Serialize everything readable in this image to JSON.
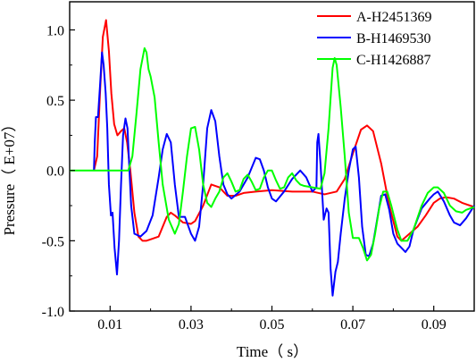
{
  "chart_data": {
    "type": "line",
    "title": "",
    "xlabel": "Time（ s）",
    "ylabel": "Pressure（ E+07）",
    "xlim": [
      0.0,
      0.1
    ],
    "ylim": [
      -1.0,
      1.2
    ],
    "xticks": [
      0.01,
      0.03,
      0.05,
      0.07,
      0.09
    ],
    "xtick_labels": [
      "0.01",
      "0.03",
      "0.05",
      "0.07",
      "0.09"
    ],
    "yticks": [
      -1.0,
      -0.5,
      0.0,
      0.5,
      1.0
    ],
    "ytick_labels": [
      "-1.0",
      "-0.5",
      "0.0",
      "0.5",
      "1.0"
    ],
    "grid": false,
    "legend_position": "top-right",
    "series": [
      {
        "name": "A-H2451369",
        "color": "#ff0000",
        "points": [
          [
            0.006,
            0
          ],
          [
            0.0068,
            0.1
          ],
          [
            0.0075,
            0.55
          ],
          [
            0.0082,
            0.95
          ],
          [
            0.009,
            1.07
          ],
          [
            0.0097,
            0.85
          ],
          [
            0.0103,
            0.55
          ],
          [
            0.011,
            0.33
          ],
          [
            0.0118,
            0.25
          ],
          [
            0.0127,
            0.28
          ],
          [
            0.0135,
            0.3
          ],
          [
            0.0142,
            0.2
          ],
          [
            0.015,
            0.0
          ],
          [
            0.016,
            -0.3
          ],
          [
            0.017,
            -0.47
          ],
          [
            0.018,
            -0.5
          ],
          [
            0.019,
            -0.5
          ],
          [
            0.02,
            -0.49
          ],
          [
            0.022,
            -0.47
          ],
          [
            0.024,
            -0.33
          ],
          [
            0.025,
            -0.3
          ],
          [
            0.026,
            -0.32
          ],
          [
            0.028,
            -0.37
          ],
          [
            0.03,
            -0.38
          ],
          [
            0.031,
            -0.36
          ],
          [
            0.033,
            -0.25
          ],
          [
            0.035,
            -0.1
          ],
          [
            0.037,
            -0.12
          ],
          [
            0.039,
            -0.18
          ],
          [
            0.041,
            -0.18
          ],
          [
            0.043,
            -0.16
          ],
          [
            0.046,
            -0.15
          ],
          [
            0.05,
            -0.14
          ],
          [
            0.055,
            -0.15
          ],
          [
            0.06,
            -0.15
          ],
          [
            0.063,
            -0.17
          ],
          [
            0.066,
            -0.15
          ],
          [
            0.068,
            -0.06
          ],
          [
            0.07,
            0.12
          ],
          [
            0.072,
            0.29
          ],
          [
            0.0735,
            0.32
          ],
          [
            0.075,
            0.28
          ],
          [
            0.077,
            0.05
          ],
          [
            0.079,
            -0.25
          ],
          [
            0.081,
            -0.47
          ],
          [
            0.082,
            -0.5
          ],
          [
            0.084,
            -0.45
          ],
          [
            0.086,
            -0.4
          ],
          [
            0.088,
            -0.32
          ],
          [
            0.09,
            -0.23
          ],
          [
            0.0915,
            -0.2
          ],
          [
            0.093,
            -0.19
          ],
          [
            0.095,
            -0.2
          ],
          [
            0.097,
            -0.23
          ],
          [
            0.1,
            -0.26
          ]
        ]
      },
      {
        "name": "B-H1469530",
        "color": "#0000ff",
        "points": [
          [
            0.006,
            0
          ],
          [
            0.0062,
            0.2
          ],
          [
            0.0065,
            0.38
          ],
          [
            0.007,
            0.38
          ],
          [
            0.0075,
            0.6
          ],
          [
            0.008,
            0.84
          ],
          [
            0.0084,
            0.75
          ],
          [
            0.0089,
            0.55
          ],
          [
            0.0093,
            0.3
          ],
          [
            0.0097,
            -0.1
          ],
          [
            0.0102,
            -0.32
          ],
          [
            0.0106,
            -0.3
          ],
          [
            0.0111,
            -0.55
          ],
          [
            0.0117,
            -0.74
          ],
          [
            0.0122,
            -0.5
          ],
          [
            0.0127,
            -0.1
          ],
          [
            0.0132,
            0.25
          ],
          [
            0.0138,
            0.37
          ],
          [
            0.0143,
            0.3
          ],
          [
            0.0147,
            0.05
          ],
          [
            0.0152,
            -0.25
          ],
          [
            0.016,
            -0.45
          ],
          [
            0.0175,
            -0.47
          ],
          [
            0.019,
            -0.43
          ],
          [
            0.0205,
            -0.32
          ],
          [
            0.022,
            -0.05
          ],
          [
            0.023,
            0.15
          ],
          [
            0.024,
            0.26
          ],
          [
            0.025,
            0.2
          ],
          [
            0.026,
            -0.1
          ],
          [
            0.027,
            -0.33
          ],
          [
            0.0285,
            -0.33
          ],
          [
            0.03,
            -0.45
          ],
          [
            0.031,
            -0.5
          ],
          [
            0.032,
            -0.4
          ],
          [
            0.033,
            -0.1
          ],
          [
            0.034,
            0.3
          ],
          [
            0.035,
            0.43
          ],
          [
            0.036,
            0.35
          ],
          [
            0.037,
            0.1
          ],
          [
            0.038,
            -0.1
          ],
          [
            0.039,
            -0.17
          ],
          [
            0.04,
            -0.2
          ],
          [
            0.042,
            -0.15
          ],
          [
            0.044,
            -0.05
          ],
          [
            0.046,
            0.09
          ],
          [
            0.047,
            0.08
          ],
          [
            0.048,
            0.0
          ],
          [
            0.049,
            -0.12
          ],
          [
            0.05,
            -0.2
          ],
          [
            0.051,
            -0.22
          ],
          [
            0.053,
            -0.15
          ],
          [
            0.055,
            -0.06
          ],
          [
            0.057,
            0.0
          ],
          [
            0.0585,
            -0.05
          ],
          [
            0.06,
            -0.15
          ],
          [
            0.061,
            -0.12
          ],
          [
            0.0612,
            0.2
          ],
          [
            0.0615,
            0.26
          ],
          [
            0.062,
            0.05
          ],
          [
            0.0628,
            -0.35
          ],
          [
            0.0635,
            -0.27
          ],
          [
            0.064,
            -0.3
          ],
          [
            0.0645,
            -0.7
          ],
          [
            0.065,
            -0.89
          ],
          [
            0.0657,
            -0.72
          ],
          [
            0.0663,
            -0.65
          ],
          [
            0.067,
            -0.45
          ],
          [
            0.068,
            -0.2
          ],
          [
            0.069,
            0.0
          ],
          [
            0.07,
            0.15
          ],
          [
            0.0707,
            0.17
          ],
          [
            0.0715,
            -0.05
          ],
          [
            0.0723,
            -0.4
          ],
          [
            0.0732,
            -0.6
          ],
          [
            0.074,
            -0.61
          ],
          [
            0.075,
            -0.52
          ],
          [
            0.076,
            -0.35
          ],
          [
            0.077,
            -0.18
          ],
          [
            0.078,
            -0.17
          ],
          [
            0.079,
            -0.28
          ],
          [
            0.08,
            -0.45
          ],
          [
            0.081,
            -0.52
          ],
          [
            0.082,
            -0.55
          ],
          [
            0.083,
            -0.58
          ],
          [
            0.084,
            -0.54
          ],
          [
            0.085,
            -0.42
          ],
          [
            0.087,
            -0.27
          ],
          [
            0.089,
            -0.2
          ],
          [
            0.09,
            -0.17
          ],
          [
            0.091,
            -0.15
          ],
          [
            0.0925,
            -0.22
          ],
          [
            0.094,
            -0.32
          ],
          [
            0.095,
            -0.37
          ],
          [
            0.0965,
            -0.39
          ],
          [
            0.098,
            -0.34
          ],
          [
            0.1,
            -0.25
          ]
        ]
      },
      {
        "name": "C-H1426887",
        "color": "#00ff00",
        "points": [
          [
            0.0,
            0
          ],
          [
            0.01,
            0
          ],
          [
            0.0145,
            0.0
          ],
          [
            0.0155,
            0.1
          ],
          [
            0.0165,
            0.4
          ],
          [
            0.0175,
            0.72
          ],
          [
            0.0185,
            0.87
          ],
          [
            0.019,
            0.84
          ],
          [
            0.0195,
            0.72
          ],
          [
            0.02,
            0.67
          ],
          [
            0.021,
            0.52
          ],
          [
            0.022,
            0.2
          ],
          [
            0.023,
            -0.1
          ],
          [
            0.0245,
            -0.35
          ],
          [
            0.026,
            -0.45
          ],
          [
            0.027,
            -0.38
          ],
          [
            0.028,
            -0.15
          ],
          [
            0.029,
            0.1
          ],
          [
            0.03,
            0.3
          ],
          [
            0.031,
            0.31
          ],
          [
            0.032,
            0.15
          ],
          [
            0.033,
            -0.1
          ],
          [
            0.034,
            -0.23
          ],
          [
            0.035,
            -0.26
          ],
          [
            0.036,
            -0.2
          ],
          [
            0.037,
            -0.15
          ],
          [
            0.038,
            -0.05
          ],
          [
            0.039,
            -0.02
          ],
          [
            0.04,
            -0.08
          ],
          [
            0.041,
            -0.15
          ],
          [
            0.042,
            -0.14
          ],
          [
            0.043,
            -0.06
          ],
          [
            0.044,
            -0.03
          ],
          [
            0.045,
            -0.08
          ],
          [
            0.046,
            -0.14
          ],
          [
            0.047,
            -0.13
          ],
          [
            0.048,
            -0.05
          ],
          [
            0.049,
            0.0
          ],
          [
            0.05,
            0.0
          ],
          [
            0.051,
            -0.07
          ],
          [
            0.052,
            -0.13
          ],
          [
            0.053,
            -0.12
          ],
          [
            0.054,
            -0.05
          ],
          [
            0.055,
            -0.02
          ],
          [
            0.056,
            -0.07
          ],
          [
            0.057,
            -0.1
          ],
          [
            0.058,
            -0.11
          ],
          [
            0.06,
            -0.12
          ],
          [
            0.062,
            -0.13
          ],
          [
            0.063,
            -0.02
          ],
          [
            0.064,
            0.3
          ],
          [
            0.065,
            0.73
          ],
          [
            0.0655,
            0.8
          ],
          [
            0.066,
            0.75
          ],
          [
            0.067,
            0.45
          ],
          [
            0.068,
            0.1
          ],
          [
            0.069,
            -0.3
          ],
          [
            0.07,
            -0.48
          ],
          [
            0.0715,
            -0.48
          ],
          [
            0.0725,
            -0.55
          ],
          [
            0.0735,
            -0.64
          ],
          [
            0.0745,
            -0.6
          ],
          [
            0.0755,
            -0.45
          ],
          [
            0.0765,
            -0.27
          ],
          [
            0.0775,
            -0.15
          ],
          [
            0.0785,
            -0.15
          ],
          [
            0.0795,
            -0.25
          ],
          [
            0.081,
            -0.42
          ],
          [
            0.082,
            -0.5
          ],
          [
            0.0835,
            -0.5
          ],
          [
            0.085,
            -0.42
          ],
          [
            0.087,
            -0.25
          ],
          [
            0.0885,
            -0.16
          ],
          [
            0.09,
            -0.12
          ],
          [
            0.091,
            -0.12
          ],
          [
            0.0925,
            -0.16
          ],
          [
            0.094,
            -0.25
          ],
          [
            0.0955,
            -0.29
          ],
          [
            0.097,
            -0.3
          ],
          [
            0.098,
            -0.28
          ],
          [
            0.099,
            -0.27
          ],
          [
            0.1,
            -0.26
          ]
        ]
      }
    ]
  }
}
